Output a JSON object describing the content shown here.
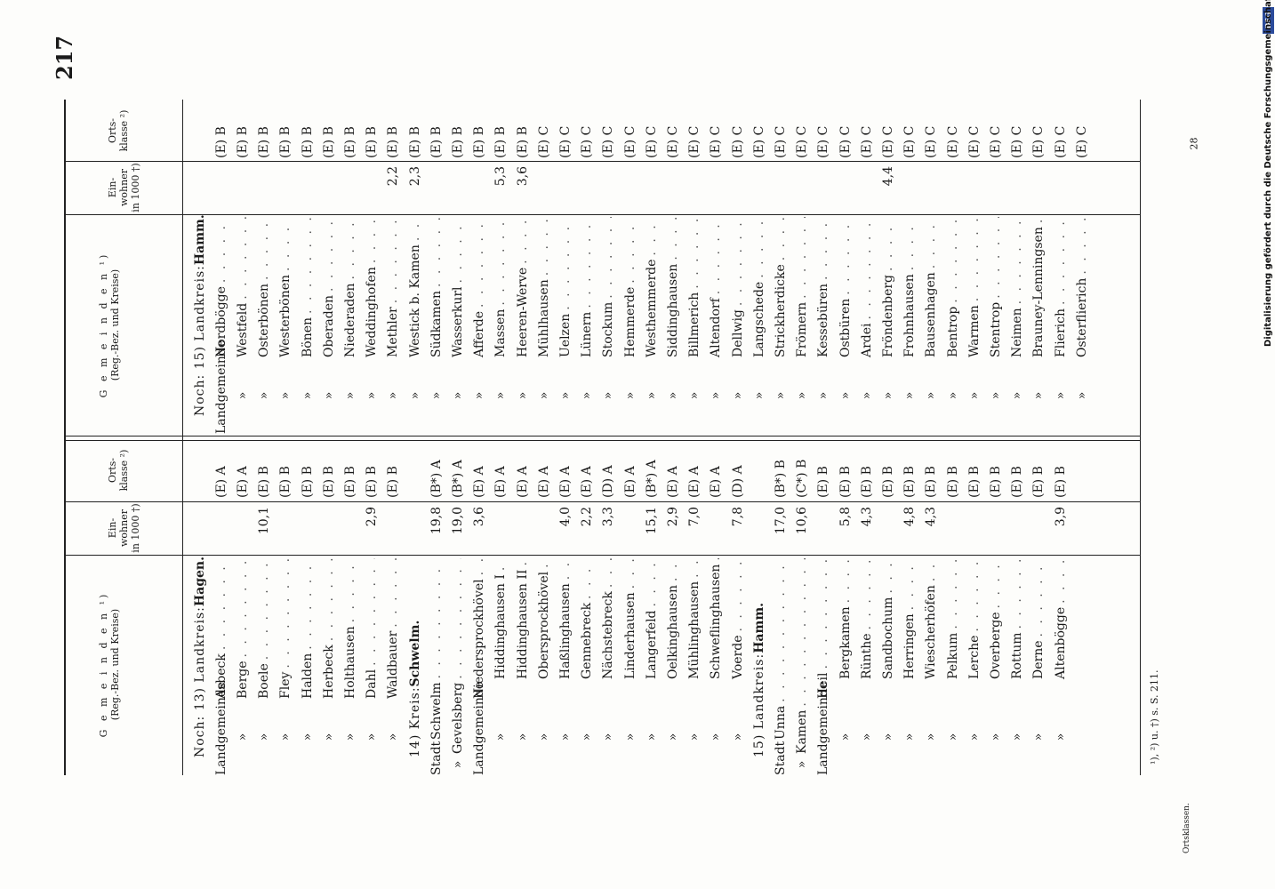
{
  "page_number": "217",
  "page_mark": "28",
  "header": {
    "gemeinden_title": "G e m e i n d e n ¹)",
    "gemeinden_sub": "(Reg.-Bez. und Kreise)",
    "einwohner": "Ein- wohner in 1000 †)",
    "ortsklasse": "Orts- klasse ²)"
  },
  "left": {
    "rows": [
      {
        "type": "section",
        "text": "Noch: 13) Landkreis:",
        "bold": "Hagen."
      },
      {
        "pre": "Landgemeinde",
        "name": "Asbeck",
        "pop": "",
        "cls": "(E) A"
      },
      {
        "pre": "»",
        "name": "Berge",
        "pop": "",
        "cls": "(E) A"
      },
      {
        "pre": "»",
        "name": "Boele",
        "pop": "10,1",
        "cls": "(E) B"
      },
      {
        "pre": "»",
        "name": "Fley",
        "pop": "",
        "cls": "(E) B"
      },
      {
        "pre": "»",
        "name": "Halden",
        "pop": "",
        "cls": "(E) B"
      },
      {
        "pre": "»",
        "name": "Herbeck",
        "pop": "",
        "cls": "(E) B"
      },
      {
        "pre": "»",
        "name": "Holthausen",
        "pop": "",
        "cls": "(E) B"
      },
      {
        "pre": "»",
        "name": "Dahl",
        "pop": "2,9",
        "cls": "(E) B"
      },
      {
        "pre": "»",
        "name": "Waldbauer",
        "pop": "",
        "cls": "(E) B"
      },
      {
        "type": "section",
        "text": "14) Kreis:",
        "bold": "Schwelm."
      },
      {
        "pre": "Stadt",
        "name": "Schwelm",
        "pop": "19,8",
        "cls": "(B*) A"
      },
      {
        "pre": "» ",
        "name": "Gevelsberg",
        "pop": "19,0",
        "cls": "(B*) A"
      },
      {
        "pre": "Landgemeinde",
        "name": "Niedersprockhövel",
        "pop": "3,6",
        "cls": "(E) A"
      },
      {
        "pre": "»",
        "name": "Hiddinghausen I",
        "pop": "",
        "cls": "(E) A",
        "ind": true
      },
      {
        "pre": "»",
        "name": "Hiddinghausen II",
        "pop": "",
        "cls": "(E) A",
        "ind": true
      },
      {
        "pre": "»",
        "name": "Obersprockhövel",
        "pop": "",
        "cls": "(E) A",
        "ind": true
      },
      {
        "pre": "»",
        "name": "Haßlinghausen",
        "pop": "4,0",
        "cls": "(E) A",
        "ind": true
      },
      {
        "pre": "»",
        "name": "Gennebreck",
        "pop": "2,2",
        "cls": "(E) A",
        "ind": true
      },
      {
        "pre": "»",
        "name": "Nächstebreck",
        "pop": "3,3",
        "cls": "(D) A",
        "ind": true
      },
      {
        "pre": "»",
        "name": "Linderhausen",
        "pop": "",
        "cls": "(E) A",
        "ind": true
      },
      {
        "pre": "»",
        "name": "Langerfeld",
        "pop": "15,1",
        "cls": "(B*) A",
        "ind": true
      },
      {
        "pre": "»",
        "name": "Oelkinghausen",
        "pop": "2,9",
        "cls": "(E) A",
        "ind": true
      },
      {
        "pre": "»",
        "name": "Mühlinghausen",
        "pop": "7,0",
        "cls": "(E) A",
        "ind": true
      },
      {
        "pre": "»",
        "name": "Schweflinghausen",
        "pop": "",
        "cls": "(E) A",
        "ind": true
      },
      {
        "pre": "»",
        "name": "Voerde",
        "pop": "7,8",
        "cls": "(D) A",
        "ind": true
      },
      {
        "type": "section",
        "text": "15) Landkreis:",
        "bold": "Hamm."
      },
      {
        "pre": "Stadt",
        "name": "Unna",
        "pop": "17,0",
        "cls": "(B*) B"
      },
      {
        "pre": "» ",
        "name": "Kamen",
        "pop": "10,6",
        "cls": "(C*) B"
      },
      {
        "pre": "Landgemeinde",
        "name": "Heil",
        "pop": "",
        "cls": "(E) B"
      },
      {
        "pre": "»",
        "name": "Bergkamen",
        "pop": "5,8",
        "cls": "(E) B",
        "ind": true
      },
      {
        "pre": "»",
        "name": "Rünthe",
        "pop": "4,3",
        "cls": "(E) B",
        "ind": true
      },
      {
        "pre": "»",
        "name": "Sandbochum",
        "pop": "",
        "cls": "(E) B",
        "ind": true
      },
      {
        "pre": "»",
        "name": "Herringen",
        "pop": "4,8",
        "cls": "(E) B",
        "ind": true
      },
      {
        "pre": "»",
        "name": "Wiescherhöfen",
        "pop": "4,3",
        "cls": "(E) B",
        "ind": true
      },
      {
        "pre": "»",
        "name": "Pelkum",
        "pop": "",
        "cls": "(E) B",
        "ind": true
      },
      {
        "pre": "»",
        "name": "Lerche",
        "pop": "",
        "cls": "(E) B",
        "ind": true
      },
      {
        "pre": "»",
        "name": "Overberge",
        "pop": "",
        "cls": "(E) B",
        "ind": true
      },
      {
        "pre": "»",
        "name": "Rottum",
        "pop": "",
        "cls": "(E) B",
        "ind": true
      },
      {
        "pre": "»",
        "name": "Derne",
        "pop": "",
        "cls": "(E) B",
        "ind": true
      },
      {
        "pre": "»",
        "name": "Altenbögge",
        "pop": "3,9",
        "cls": "(E) B",
        "ind": true
      }
    ]
  },
  "right": {
    "rows": [
      {
        "type": "section",
        "text": "Noch: 15) Landkreis:",
        "bold": "Hamm."
      },
      {
        "pre": "Landgemeinde",
        "name": "Nordbögge",
        "pop": "",
        "cls": "(E) B"
      },
      {
        "pre": "»",
        "name": "Westfeld",
        "pop": "",
        "cls": "(E) B"
      },
      {
        "pre": "»",
        "name": "Osterbönen",
        "pop": "",
        "cls": "(E) B"
      },
      {
        "pre": "»",
        "name": "Westerbönen",
        "pop": "",
        "cls": "(E) B"
      },
      {
        "pre": "»",
        "name": "Bönen",
        "pop": "",
        "cls": "(E) B"
      },
      {
        "pre": "»",
        "name": "Oberaden",
        "pop": "",
        "cls": "(E) B"
      },
      {
        "pre": "»",
        "name": "Niederaden",
        "pop": "",
        "cls": "(E) B"
      },
      {
        "pre": "»",
        "name": "Weddinghofen",
        "pop": "",
        "cls": "(E) B"
      },
      {
        "pre": "»",
        "name": "Methler",
        "pop": "2,2",
        "cls": "(E) B"
      },
      {
        "pre": "»",
        "name": "Westick b. Kamen",
        "pop": "2,3",
        "cls": "(E) B"
      },
      {
        "pre": "»",
        "name": "Südkamen",
        "pop": "",
        "cls": "(E) B"
      },
      {
        "pre": "»",
        "name": "Wasserkurl",
        "pop": "",
        "cls": "(E) B"
      },
      {
        "pre": "»",
        "name": "Afferde",
        "pop": "",
        "cls": "(E) B"
      },
      {
        "pre": "»",
        "name": "Massen",
        "pop": "5,3",
        "cls": "(E) B"
      },
      {
        "pre": "»",
        "name": "Heeren-Werve",
        "pop": "3,6",
        "cls": "(E) B"
      },
      {
        "pre": "»",
        "name": "Mühlhausen",
        "pop": "",
        "cls": "(E) C"
      },
      {
        "pre": "»",
        "name": "Uelzen",
        "pop": "",
        "cls": "(E) C"
      },
      {
        "pre": "»",
        "name": "Lünern",
        "pop": "",
        "cls": "(E) C"
      },
      {
        "pre": "»",
        "name": "Stockum",
        "pop": "",
        "cls": "(E) C"
      },
      {
        "pre": "»",
        "name": "Hemmerde",
        "pop": "",
        "cls": "(E) C"
      },
      {
        "pre": "»",
        "name": "Westhemmerde",
        "pop": "",
        "cls": "(E) C"
      },
      {
        "pre": "»",
        "name": "Siddinghausen",
        "pop": "",
        "cls": "(E) C"
      },
      {
        "pre": "»",
        "name": "Billmerich",
        "pop": "",
        "cls": "(E) C"
      },
      {
        "pre": "»",
        "name": "Altendorf",
        "pop": "",
        "cls": "(E) C"
      },
      {
        "pre": "»",
        "name": "Dellwig",
        "pop": "",
        "cls": "(E) C"
      },
      {
        "pre": "»",
        "name": "Langschede",
        "pop": "",
        "cls": "(E) C"
      },
      {
        "pre": "»",
        "name": "Strickherdicke",
        "pop": "",
        "cls": "(E) C"
      },
      {
        "pre": "»",
        "name": "Frömern",
        "pop": "",
        "cls": "(E) C"
      },
      {
        "pre": "»",
        "name": "Kessebüren",
        "pop": "",
        "cls": "(E) C"
      },
      {
        "pre": "»",
        "name": "Ostbüren",
        "pop": "",
        "cls": "(E) C"
      },
      {
        "pre": "»",
        "name": "Ardei",
        "pop": "",
        "cls": "(E) C"
      },
      {
        "pre": "»",
        "name": "Fröndenberg",
        "pop": "4,4",
        "cls": "(E) C"
      },
      {
        "pre": "»",
        "name": "Frohnhausen",
        "pop": "",
        "cls": "(E) C"
      },
      {
        "pre": "»",
        "name": "Bausenhagen",
        "pop": "",
        "cls": "(E) C"
      },
      {
        "pre": "»",
        "name": "Bentrop",
        "pop": "",
        "cls": "(E) C"
      },
      {
        "pre": "»",
        "name": "Warmen",
        "pop": "",
        "cls": "(E) C"
      },
      {
        "pre": "»",
        "name": "Stentrop",
        "pop": "",
        "cls": "(E) C"
      },
      {
        "pre": "»",
        "name": "Neimen",
        "pop": "",
        "cls": "(E) C"
      },
      {
        "pre": "»",
        "name": "Brauney-Lenningsen",
        "pop": "",
        "cls": "(E) C"
      },
      {
        "pre": "»",
        "name": "Flierich",
        "pop": "",
        "cls": "(E) C"
      },
      {
        "pre": "»",
        "name": "Osterflierich",
        "pop": "",
        "cls": "(E) C"
      }
    ]
  },
  "footnote": "¹), ²) u. †) s. S. 211.",
  "footnote2": "Ortsklassen.",
  "sidebar_credit": "Digitalisierung gefördert durch die Deutsche Forschungsgemeinschaft",
  "sidebar_logo": "DFG"
}
